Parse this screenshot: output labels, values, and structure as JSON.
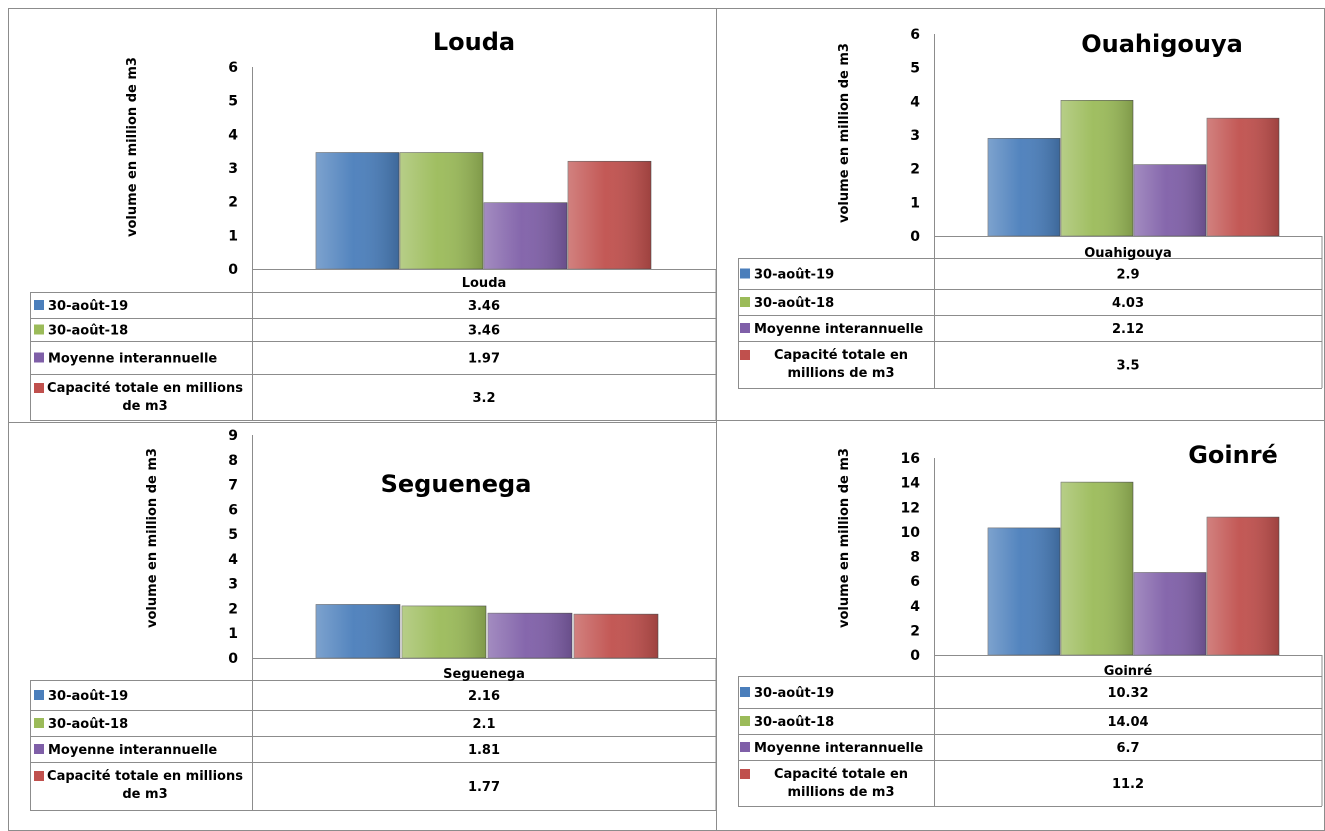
{
  "colors": {
    "aug19": "#4a7ebb",
    "aug18": "#9bbb59",
    "moyenne": "#7f5fa8",
    "capacite": "#c0504d"
  },
  "chart_data": [
    {
      "type": "bar",
      "title": "Louda",
      "ylabel": "volume en million de m3",
      "ylim": [
        0,
        6
      ],
      "yticks": [
        "0",
        "1",
        "2",
        "3",
        "4",
        "5",
        "6"
      ],
      "categories": [
        "Louda"
      ],
      "series": [
        {
          "name": "30-août-19",
          "values": [
            3.46
          ],
          "display": "3.46"
        },
        {
          "name": "30-août-18",
          "values": [
            3.46
          ],
          "display": "3.46"
        },
        {
          "name": "Moyenne interannuelle",
          "values": [
            1.97
          ],
          "display": "1.97"
        },
        {
          "name": "Capacité totale en millions de m3",
          "values": [
            3.2
          ],
          "display": "3.2"
        }
      ]
    },
    {
      "type": "bar",
      "title": "Ouahigouya",
      "ylabel": "volume en million de m3",
      "ylim": [
        0,
        6
      ],
      "yticks": [
        "0",
        "1",
        "2",
        "3",
        "4",
        "5",
        "6"
      ],
      "categories": [
        "Ouahigouya"
      ],
      "series": [
        {
          "name": "30-août-19",
          "values": [
            2.9
          ],
          "display": "2.9"
        },
        {
          "name": "30-août-18",
          "values": [
            4.03
          ],
          "display": "4.03"
        },
        {
          "name": "Moyenne interannuelle",
          "values": [
            2.12
          ],
          "display": "2.12"
        },
        {
          "name": "Capacité totale en millions de m3",
          "values": [
            3.5
          ],
          "display": "3.5"
        }
      ]
    },
    {
      "type": "bar",
      "title": "Seguenega",
      "ylabel": "volume en million de m3",
      "ylim": [
        0,
        9
      ],
      "yticks": [
        "0",
        "1",
        "2",
        "3",
        "4",
        "5",
        "6",
        "7",
        "8",
        "9"
      ],
      "categories": [
        "Seguenega"
      ],
      "series": [
        {
          "name": "30-août-19",
          "values": [
            2.16
          ],
          "display": "2.16"
        },
        {
          "name": "30-août-18",
          "values": [
            2.1
          ],
          "display": "2.1"
        },
        {
          "name": "Moyenne interannuelle",
          "values": [
            1.81
          ],
          "display": "1.81"
        },
        {
          "name": "Capacité totale en millions de m3",
          "values": [
            1.77
          ],
          "display": "1.77"
        }
      ]
    },
    {
      "type": "bar",
      "title": "Goinré",
      "ylabel": "volume en million de m3",
      "ylim": [
        0,
        16
      ],
      "yticks": [
        "0",
        "2",
        "4",
        "6",
        "8",
        "10",
        "12",
        "14",
        "16"
      ],
      "categories": [
        "Goinré"
      ],
      "series": [
        {
          "name": "30-août-19",
          "values": [
            10.32
          ],
          "display": "10.32"
        },
        {
          "name": "30-août-18",
          "values": [
            14.04
          ],
          "display": "14.04"
        },
        {
          "name": "Moyenne interannuelle",
          "values": [
            6.7
          ],
          "display": "6.7"
        },
        {
          "name": "Capacité totale en millions de m3",
          "values": [
            11.2
          ],
          "display": "11.2"
        }
      ]
    }
  ]
}
